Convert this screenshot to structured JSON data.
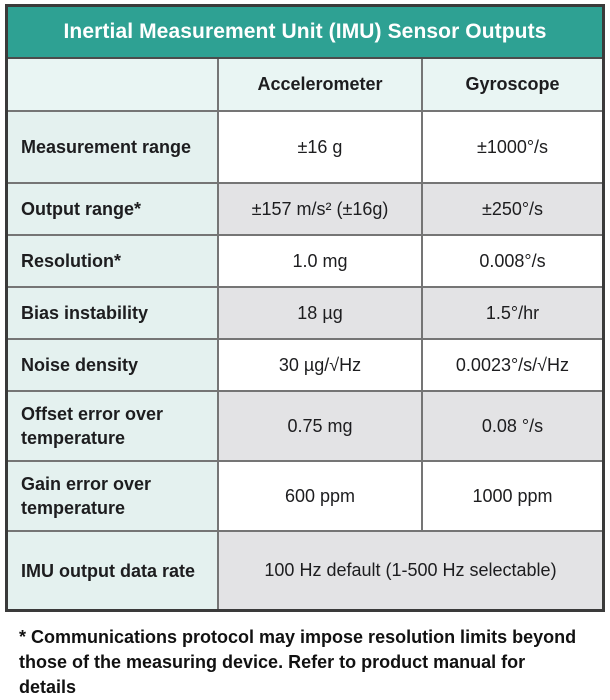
{
  "title": "Inertial Measurement Unit (IMU) Sensor Outputs",
  "header": {
    "accelerometer": "Accelerometer",
    "gyroscope": "Gyroscope"
  },
  "rows": [
    {
      "label": "Measurement range",
      "accel": "±16 g",
      "gyro": "±1000°/s"
    },
    {
      "label": "Output range*",
      "accel": "±157 m/s² (±16g)",
      "gyro": "±250°/s"
    },
    {
      "label": "Resolution*",
      "accel": "1.0 mg",
      "gyro": "0.008°/s"
    },
    {
      "label": "Bias instability",
      "accel": "18 µg",
      "gyro": "1.5°/hr"
    },
    {
      "label": "Noise density",
      "accel": "30 µg/√Hz",
      "gyro": "0.0023°/s/√Hz"
    },
    {
      "label": "Offset error over temperature",
      "accel": "0.75 mg",
      "gyro": "0.08 °/s"
    },
    {
      "label": "Gain error over temperature",
      "accel": "600 ppm",
      "gyro": "1000 ppm"
    },
    {
      "label": "IMU output data rate",
      "span": "100 Hz default (1-500 Hz selectable)"
    }
  ],
  "footnote": "* Communications protocol may impose resolution limits beyond those of the measuring device. Refer to product manual for details",
  "colors": {
    "title_band": "#2ea193",
    "label_cell_bg": "#e4f1ef",
    "header_cell_bg": "#e9f5f3",
    "stripe_bg": "#e3e3e5",
    "inner_border": "#757575",
    "outer_border": "#3a3a3a",
    "title_text": "#ffffff",
    "body_text": "#1d1d1f"
  }
}
